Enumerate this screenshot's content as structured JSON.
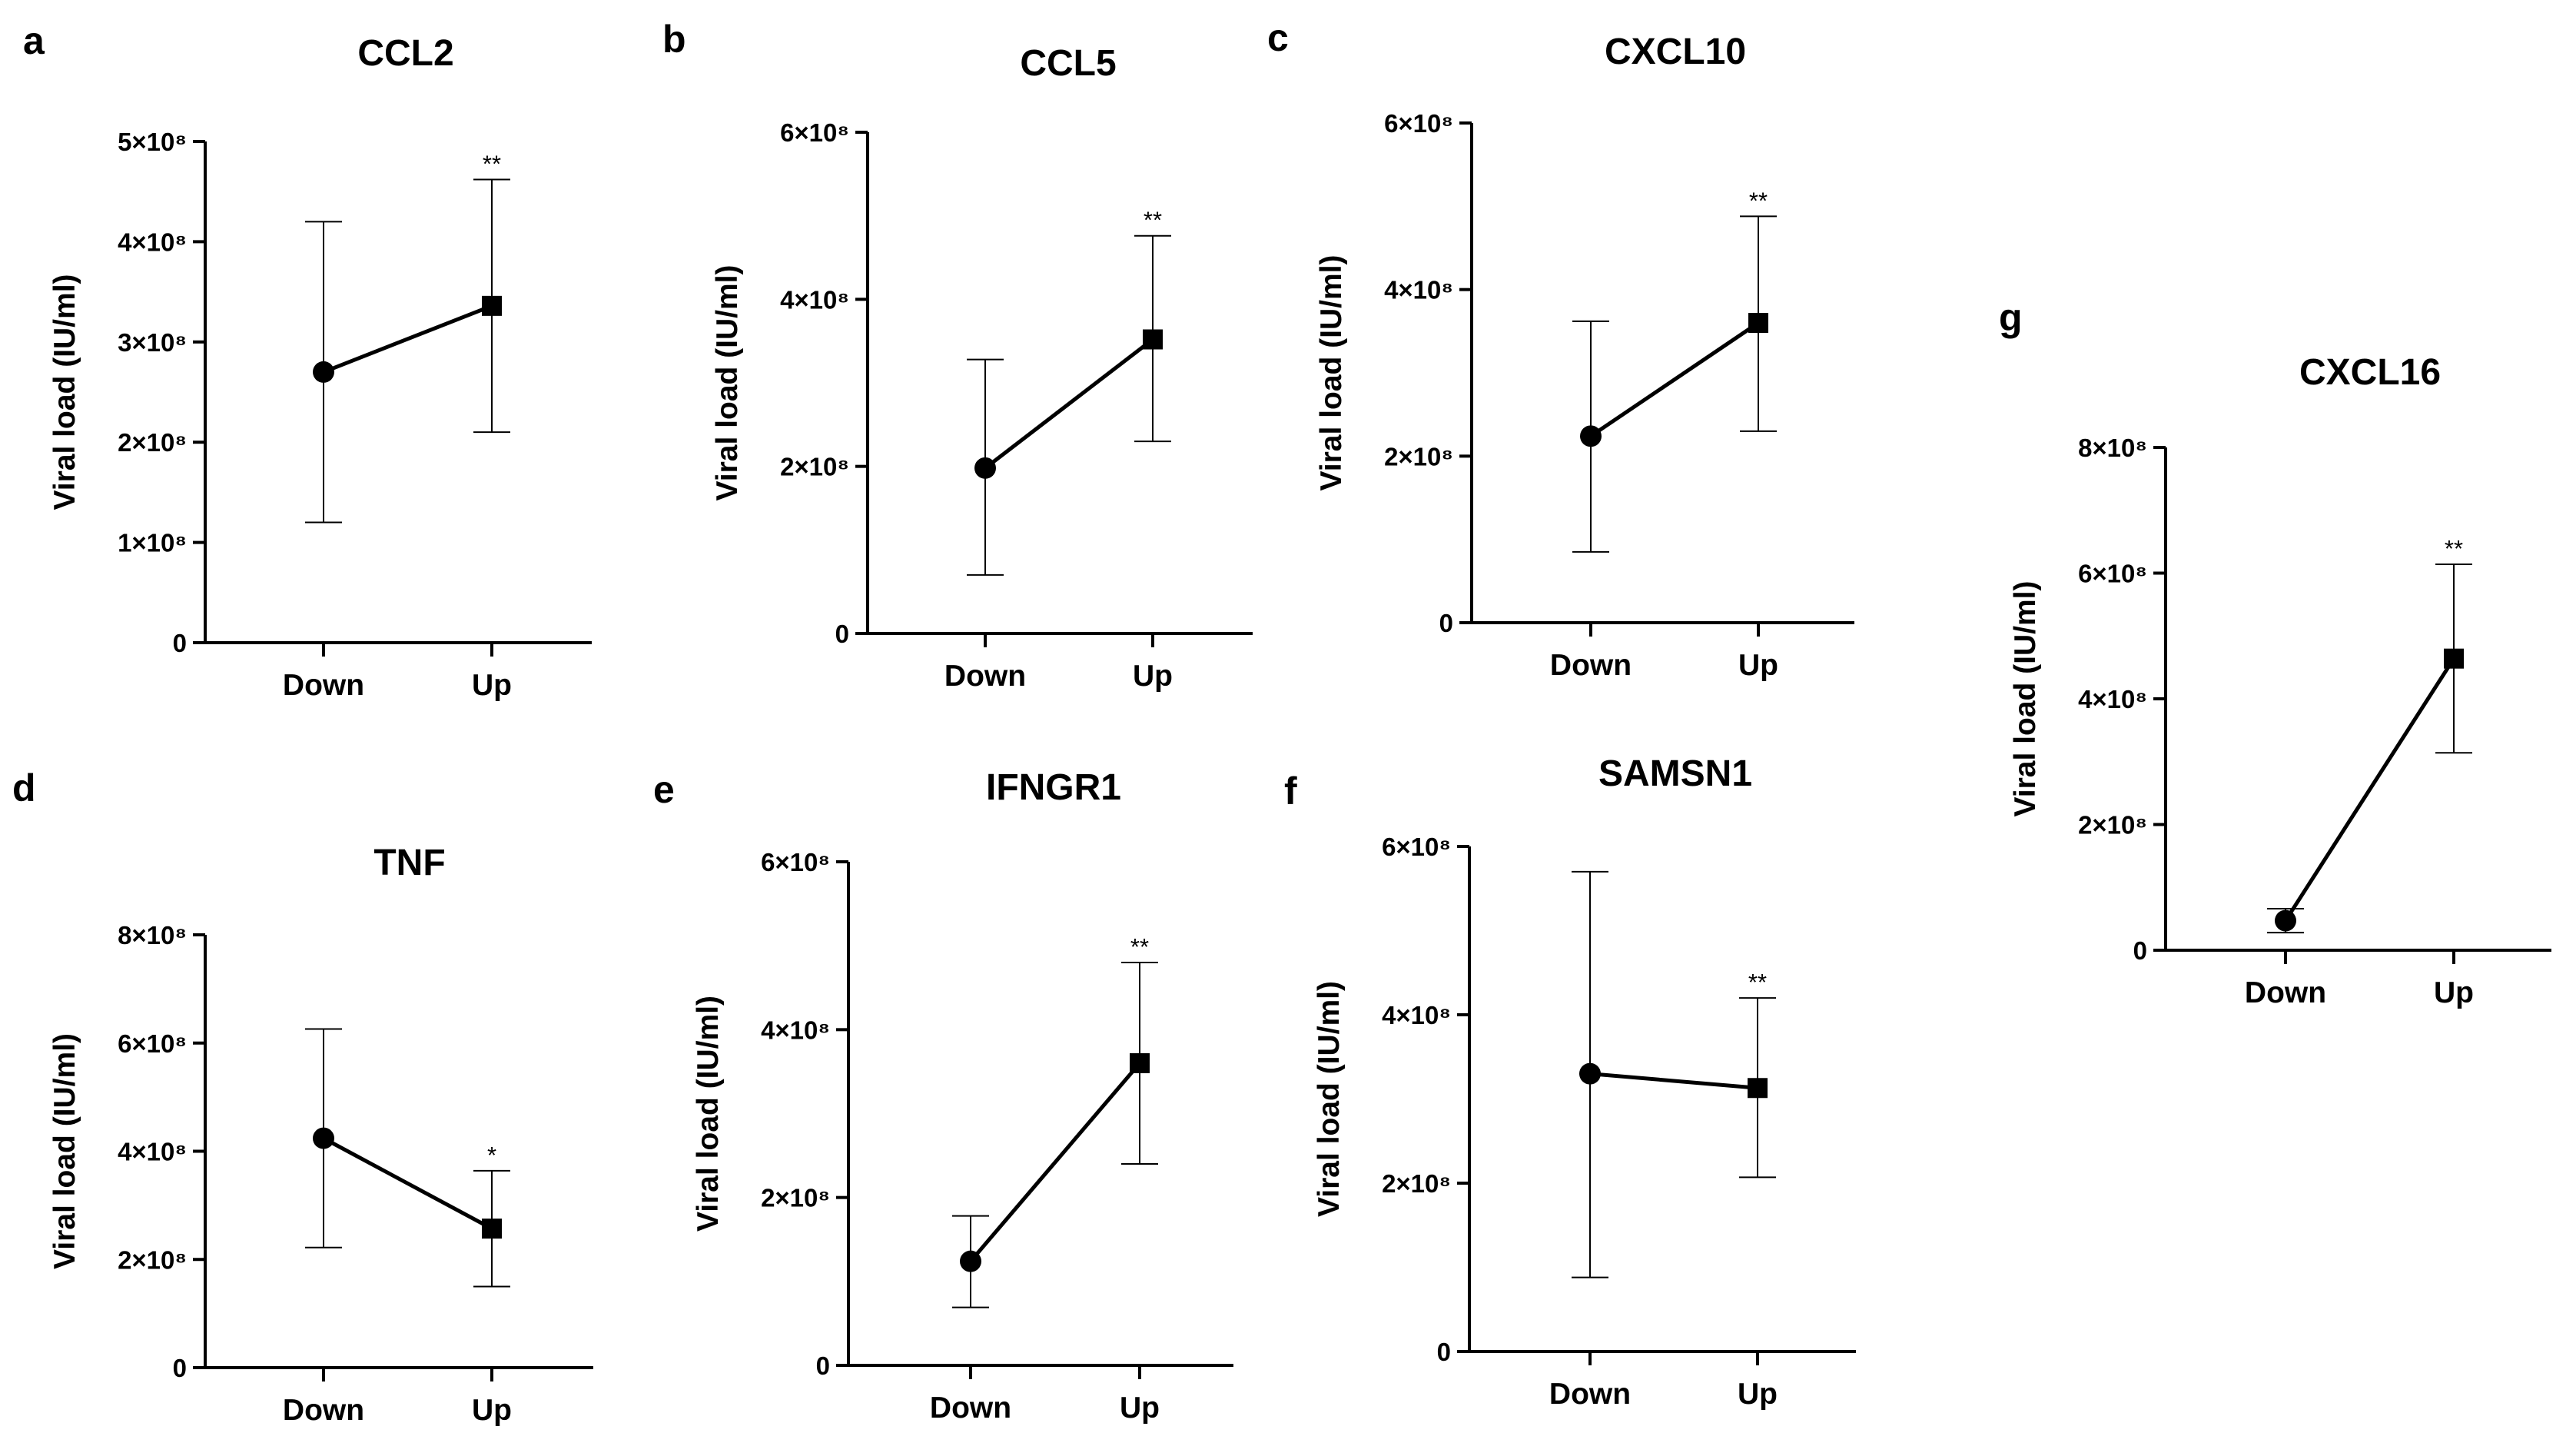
{
  "chart_data": [
    {
      "panel": "a",
      "type": "line",
      "title": "CCL2",
      "ylabel": "Viral load (IU/ml)",
      "xlabel": "",
      "categories": [
        "Down",
        "Up"
      ],
      "ylim": [
        0,
        500000000
      ],
      "yticks": [
        0,
        100000000,
        200000000,
        300000000,
        400000000,
        500000000
      ],
      "ytick_labels": [
        "0",
        "1×10⁸",
        "2×10⁸",
        "3×10⁸",
        "4×10⁸",
        "5×10⁸"
      ],
      "points": [
        {
          "x": "Down",
          "y": 270000000,
          "lo": 120000000,
          "hi": 420000000,
          "marker": "circle",
          "sig": ""
        },
        {
          "x": "Up",
          "y": 336000000,
          "lo": 210000000,
          "hi": 462000000,
          "marker": "square",
          "sig": "**"
        }
      ]
    },
    {
      "panel": "b",
      "type": "line",
      "title": "CCL5",
      "ylabel": "Viral load (IU/ml)",
      "xlabel": "",
      "categories": [
        "Down",
        "Up"
      ],
      "ylim": [
        0,
        600000000
      ],
      "yticks": [
        0,
        200000000,
        400000000,
        600000000
      ],
      "ytick_labels": [
        "0",
        "2×10⁸",
        "4×10⁸",
        "6×10⁸"
      ],
      "points": [
        {
          "x": "Down",
          "y": 198000000,
          "lo": 70000000,
          "hi": 328000000,
          "marker": "circle",
          "sig": ""
        },
        {
          "x": "Up",
          "y": 352000000,
          "lo": 230000000,
          "hi": 476000000,
          "marker": "square",
          "sig": "**"
        }
      ]
    },
    {
      "panel": "c",
      "type": "line",
      "title": "CXCL10",
      "ylabel": "Viral load (IU/ml)",
      "xlabel": "",
      "categories": [
        "Down",
        "Up"
      ],
      "ylim": [
        0,
        600000000
      ],
      "yticks": [
        0,
        200000000,
        400000000,
        600000000
      ],
      "ytick_labels": [
        "0",
        "2×10⁸",
        "4×10⁸",
        "6×10⁸"
      ],
      "points": [
        {
          "x": "Down",
          "y": 224000000,
          "lo": 85000000,
          "hi": 362000000,
          "marker": "circle",
          "sig": ""
        },
        {
          "x": "Up",
          "y": 360000000,
          "lo": 230000000,
          "hi": 488000000,
          "marker": "square",
          "sig": "**"
        }
      ]
    },
    {
      "panel": "d",
      "type": "line",
      "title": "TNF",
      "ylabel": "Viral load (IU/ml)",
      "xlabel": "",
      "categories": [
        "Down",
        "Up"
      ],
      "ylim": [
        0,
        800000000
      ],
      "yticks": [
        0,
        200000000,
        400000000,
        600000000,
        800000000
      ],
      "ytick_labels": [
        "0",
        "2×10⁸",
        "4×10⁸",
        "6×10⁸",
        "8×10⁸"
      ],
      "points": [
        {
          "x": "Down",
          "y": 424000000,
          "lo": 222000000,
          "hi": 626000000,
          "marker": "circle",
          "sig": ""
        },
        {
          "x": "Up",
          "y": 257000000,
          "lo": 150000000,
          "hi": 364000000,
          "marker": "square",
          "sig": "*"
        }
      ]
    },
    {
      "panel": "e",
      "type": "line",
      "title": "IFNGR1",
      "ylabel": "Viral load (IU/ml)",
      "xlabel": "",
      "categories": [
        "Down",
        "Up"
      ],
      "ylim": [
        0,
        600000000
      ],
      "yticks": [
        0,
        200000000,
        400000000,
        600000000
      ],
      "ytick_labels": [
        "0",
        "2×10⁸",
        "4×10⁸",
        "6×10⁸"
      ],
      "points": [
        {
          "x": "Down",
          "y": 124000000,
          "lo": 69000000,
          "hi": 178000000,
          "marker": "circle",
          "sig": ""
        },
        {
          "x": "Up",
          "y": 360000000,
          "lo": 240000000,
          "hi": 480000000,
          "marker": "square",
          "sig": "**"
        }
      ]
    },
    {
      "panel": "f",
      "type": "line",
      "title": "SAMSN1",
      "ylabel": "Viral load (IU/ml)",
      "xlabel": "",
      "categories": [
        "Down",
        "Up"
      ],
      "ylim": [
        0,
        600000000
      ],
      "yticks": [
        0,
        200000000,
        400000000,
        600000000
      ],
      "ytick_labels": [
        "0",
        "2×10⁸",
        "4×10⁸",
        "6×10⁸"
      ],
      "points": [
        {
          "x": "Down",
          "y": 330000000,
          "lo": 88000000,
          "hi": 570000000,
          "marker": "circle",
          "sig": ""
        },
        {
          "x": "Up",
          "y": 313000000,
          "lo": 207000000,
          "hi": 420000000,
          "marker": "square",
          "sig": "**"
        }
      ]
    },
    {
      "panel": "g",
      "type": "line",
      "title": "CXCL16",
      "ylabel": "Viral load (IU/ml)",
      "xlabel": "",
      "categories": [
        "Down",
        "Up"
      ],
      "ylim": [
        0,
        800000000
      ],
      "yticks": [
        0,
        200000000,
        400000000,
        600000000,
        800000000
      ],
      "ytick_labels": [
        "0",
        "2×10⁸",
        "4×10⁸",
        "6×10⁸",
        "8×10⁸"
      ],
      "points": [
        {
          "x": "Down",
          "y": 47000000,
          "lo": 28000000,
          "hi": 66000000,
          "marker": "circle",
          "sig": ""
        },
        {
          "x": "Up",
          "y": 464000000,
          "lo": 314000000,
          "hi": 614000000,
          "marker": "square",
          "sig": "**"
        }
      ]
    }
  ]
}
